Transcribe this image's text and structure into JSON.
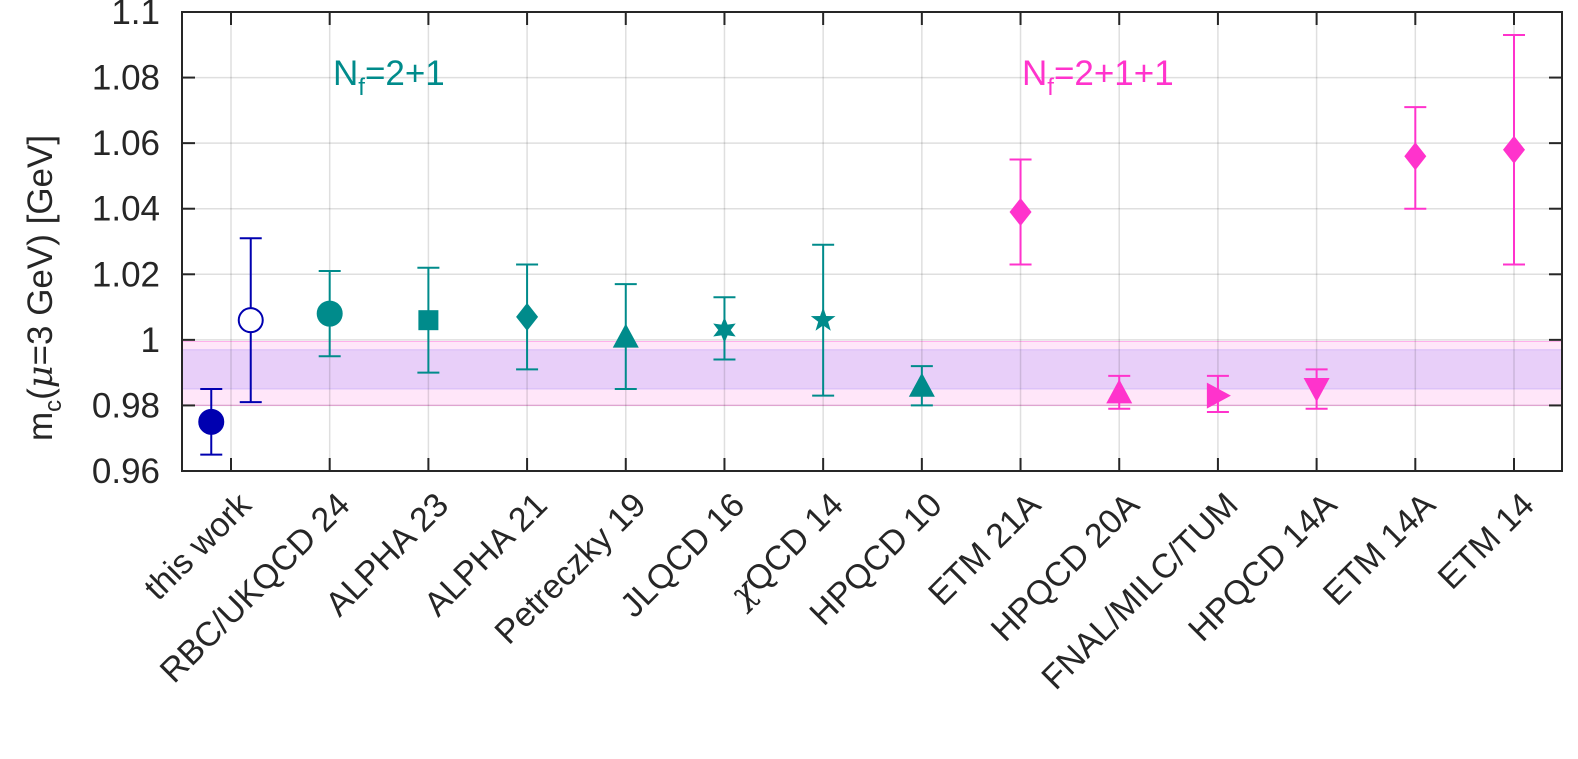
{
  "chart_data": {
    "type": "scatter",
    "title": "",
    "xlabel": "",
    "ylabel": {
      "main": "m",
      "sub": "c",
      "mu": "μ",
      "rest_a": "(",
      "rest_b": "=3 GeV) [GeV]",
      "full": "m_c(μ=3 GeV) [GeV]"
    },
    "ylim": [
      0.96,
      1.1
    ],
    "yticks": [
      0.96,
      0.98,
      1,
      1.02,
      1.04,
      1.06,
      1.08,
      1.1
    ],
    "ytick_labels": [
      "0.96",
      "0.98",
      "1",
      "1.02",
      "1.04",
      "1.06",
      "1.08",
      "1.1"
    ],
    "grid": true,
    "categories": [
      "this work",
      "RBC/UKQCD 24",
      "ALPHA 23",
      "ALPHA 21",
      "Petreczky 19",
      "JLQCD 16",
      "χQCD 14",
      "HPQCD 10",
      "ETM 21A",
      "HPQCD 20A",
      "FNAL/MILC/TUM",
      "HPQCD 14A",
      "ETM 14A",
      "ETM 14"
    ],
    "points": [
      {
        "label": "this work",
        "value": 0.975,
        "err_lo": 0.965,
        "err_hi": 0.985,
        "marker": "circle",
        "filled": true,
        "color": "#0000b0",
        "offset": -0.2
      },
      {
        "label": "this work",
        "value": 1.006,
        "err_lo": 0.981,
        "err_hi": 1.031,
        "marker": "circle",
        "filled": false,
        "color": "#0000b0",
        "offset": 0.2
      },
      {
        "label": "RBC/UKQCD 24",
        "value": 1.008,
        "err_lo": 0.995,
        "err_hi": 1.021,
        "marker": "circle",
        "filled": true,
        "color": "#008b8b"
      },
      {
        "label": "ALPHA 23",
        "value": 1.006,
        "err_lo": 0.99,
        "err_hi": 1.022,
        "marker": "square",
        "filled": true,
        "color": "#008b8b"
      },
      {
        "label": "ALPHA 21",
        "value": 1.007,
        "err_lo": 0.991,
        "err_hi": 1.023,
        "marker": "diamond",
        "filled": true,
        "color": "#008b8b"
      },
      {
        "label": "Petreczky 19",
        "value": 1.001,
        "err_lo": 0.985,
        "err_hi": 1.017,
        "marker": "triangle-up",
        "filled": true,
        "color": "#008b8b"
      },
      {
        "label": "JLQCD 16",
        "value": 1.003,
        "err_lo": 0.994,
        "err_hi": 1.013,
        "marker": "star6",
        "filled": true,
        "color": "#008b8b"
      },
      {
        "label": "χQCD 14",
        "value": 1.006,
        "err_lo": 0.983,
        "err_hi": 1.029,
        "marker": "star5",
        "filled": true,
        "color": "#008b8b"
      },
      {
        "label": "HPQCD 10",
        "value": 0.986,
        "err_lo": 0.98,
        "err_hi": 0.992,
        "marker": "triangle-up",
        "filled": true,
        "color": "#008b8b"
      },
      {
        "label": "ETM 21A",
        "value": 1.039,
        "err_lo": 1.023,
        "err_hi": 1.055,
        "marker": "diamond",
        "filled": true,
        "color": "#ff33cc"
      },
      {
        "label": "HPQCD 20A",
        "value": 0.984,
        "err_lo": 0.979,
        "err_hi": 0.989,
        "marker": "triangle-up",
        "filled": true,
        "color": "#ff33cc"
      },
      {
        "label": "FNAL/MILC/TUM",
        "value": 0.983,
        "err_lo": 0.978,
        "err_hi": 0.989,
        "marker": "triangle-right",
        "filled": true,
        "color": "#ff33cc"
      },
      {
        "label": "HPQCD 14A",
        "value": 0.985,
        "err_lo": 0.979,
        "err_hi": 0.991,
        "marker": "triangle-down",
        "filled": true,
        "color": "#ff33cc"
      },
      {
        "label": "ETM 14A",
        "value": 1.056,
        "err_lo": 1.04,
        "err_hi": 1.071,
        "marker": "diamond",
        "filled": true,
        "color": "#ff33cc"
      },
      {
        "label": "ETM 14",
        "value": 1.058,
        "err_lo": 1.023,
        "err_hi": 1.093,
        "marker": "diamond",
        "filled": true,
        "color": "#ff33cc"
      }
    ],
    "bands": [
      {
        "name": "Nf=2+1 average",
        "low": 0.985,
        "high": 0.997,
        "color": "#9999ff",
        "opacity": 0.25
      },
      {
        "name": "Nf=2+1+1 average",
        "low": 0.98,
        "high": 0.9995,
        "color": "#ff33cc",
        "opacity": 0.12
      }
    ],
    "annotations": [
      {
        "name": "nf-2p1",
        "main": "N",
        "sub": "f",
        "rest": "=2+1",
        "full": "N_f=2+1",
        "color": "#008b8b",
        "position": "top-left"
      },
      {
        "name": "nf-2p1p1",
        "main": "N",
        "sub": "f",
        "rest": "=2+1+1",
        "full": "N_f=2+1+1",
        "color": "#ff33cc",
        "position": "top-right"
      }
    ]
  }
}
